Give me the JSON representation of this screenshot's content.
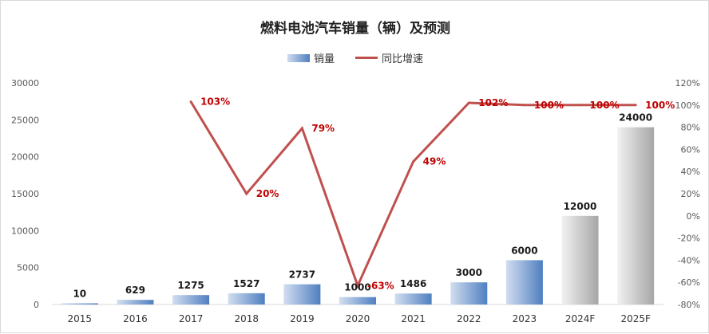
{
  "chart_data": {
    "type": "bar",
    "title": "燃料电池汽车销量（辆）及预测",
    "categories": [
      "2015",
      "2016",
      "2017",
      "2018",
      "2019",
      "2020",
      "2021",
      "2022",
      "2023",
      "2024F",
      "2025F"
    ],
    "series": [
      {
        "name": "销量",
        "type": "bar",
        "axis": "left",
        "values": [
          10,
          629,
          1275,
          1527,
          2737,
          1000,
          1486,
          3000,
          6000,
          12000,
          24000
        ],
        "labels": [
          "10",
          "629",
          "1275",
          "1527",
          "2737",
          "1000",
          "1486",
          "3000",
          "6000",
          "12000",
          "24000"
        ]
      },
      {
        "name": "同比增速",
        "type": "line",
        "axis": "right",
        "values": [
          null,
          null,
          103,
          20,
          79,
          -63,
          49,
          102,
          100,
          100,
          100
        ],
        "labels": [
          "",
          "",
          "103%",
          "20%",
          "79%",
          "-63%",
          "49%",
          "102%",
          "100%",
          "100%",
          "100%"
        ]
      }
    ],
    "yleft": {
      "min": 0,
      "max": 30000,
      "ticks": [
        "0",
        "5000",
        "10000",
        "15000",
        "20000",
        "25000",
        "30000"
      ]
    },
    "yright": {
      "min": -80,
      "max": 120,
      "ticks": [
        "-80%",
        "-60%",
        "-40%",
        "-20%",
        "0%",
        "20%",
        "40%",
        "60%",
        "80%",
        "100%",
        "120%"
      ]
    },
    "legend": "top-center",
    "grid": false,
    "colors": {
      "bar_blue_light": "#d2def0",
      "bar_blue_dark": "#4f7fc0",
      "bar_gray_light": "#f2f2f2",
      "bar_gray_dark": "#a6a6a6",
      "line": "#c0504d",
      "line_label": "#c00000"
    }
  }
}
